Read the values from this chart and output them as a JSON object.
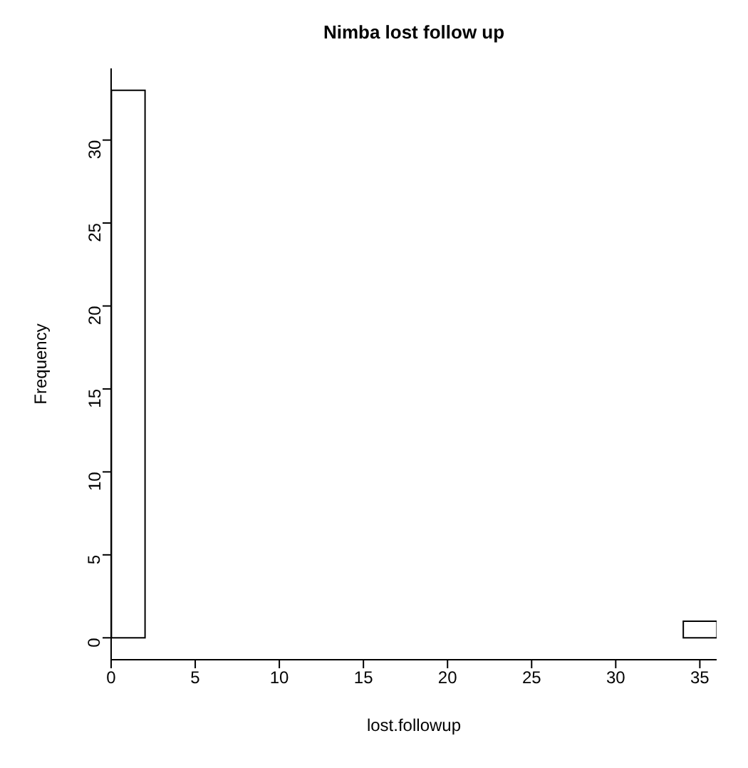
{
  "chart_data": {
    "type": "histogram",
    "title": "Nimba lost follow up",
    "xlabel": "lost.followup",
    "ylabel": "Frequency",
    "bins": [
      0,
      2,
      4,
      6,
      8,
      10,
      12,
      14,
      16,
      18,
      20,
      22,
      24,
      26,
      28,
      30,
      32,
      34,
      36
    ],
    "values": [
      33,
      0,
      0,
      0,
      0,
      0,
      0,
      0,
      0,
      0,
      0,
      0,
      0,
      0,
      0,
      0,
      0,
      1
    ],
    "color": "#ffffff",
    "xlim": [
      0,
      36
    ],
    "xticks": [
      0,
      5,
      10,
      15,
      20,
      25,
      30,
      35
    ],
    "ylim": [
      -1.32,
      34.32
    ],
    "yticks": [
      0,
      5,
      10,
      15,
      20,
      25,
      30
    ],
    "grid": false
  }
}
